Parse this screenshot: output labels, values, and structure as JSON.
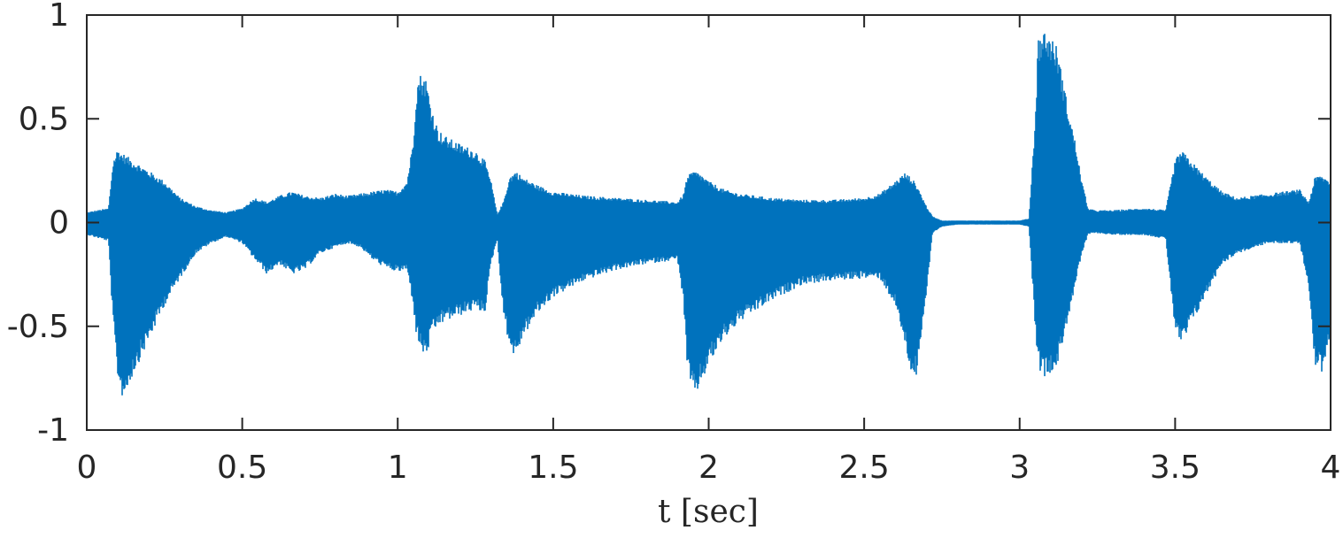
{
  "chart_data": {
    "type": "line",
    "title": "",
    "xlabel": "t [sec]",
    "ylabel": "",
    "xlim": [
      0,
      4
    ],
    "ylim": [
      -1,
      1
    ],
    "x_ticks": [
      "0",
      "0.5",
      "1",
      "1.5",
      "2",
      "2.5",
      "3",
      "3.5",
      "4"
    ],
    "y_ticks": [
      "1",
      "0.5",
      "0",
      "-0.5",
      "-1"
    ],
    "grid": false,
    "legend": "none",
    "series": [
      {
        "color": "#0072bd",
        "render": "audio-waveform-envelope",
        "envelope_t": [
          0,
          0.07,
          0.085,
          0.1,
          0.11,
          0.12,
          0.15,
          0.2,
          0.25,
          0.3,
          0.35,
          0.4,
          0.45,
          0.5,
          0.54,
          0.58,
          0.62,
          0.66,
          0.7,
          0.75,
          0.8,
          0.84,
          0.88,
          0.92,
          0.96,
          1.0,
          1.03,
          1.05,
          1.06,
          1.07,
          1.09,
          1.11,
          1.13,
          1.15,
          1.2,
          1.25,
          1.28,
          1.3,
          1.32,
          1.34,
          1.36,
          1.38,
          1.4,
          1.45,
          1.5,
          1.6,
          1.7,
          1.8,
          1.9,
          1.92,
          1.93,
          1.95,
          1.97,
          2.0,
          2.05,
          2.1,
          2.2,
          2.3,
          2.4,
          2.5,
          2.55,
          2.6,
          2.63,
          2.65,
          2.67,
          2.7,
          2.72,
          2.75,
          2.8,
          2.9,
          3.0,
          3.03,
          3.05,
          3.06,
          3.08,
          3.1,
          3.12,
          3.15,
          3.18,
          3.2,
          3.22,
          3.24,
          3.3,
          3.4,
          3.47,
          3.5,
          3.52,
          3.55,
          3.6,
          3.65,
          3.7,
          3.8,
          3.9,
          3.93,
          3.95,
          3.97,
          4.0
        ],
        "envelope_upper": [
          0.05,
          0.07,
          0.3,
          0.36,
          0.34,
          0.33,
          0.3,
          0.25,
          0.2,
          0.12,
          0.08,
          0.06,
          0.05,
          0.07,
          0.12,
          0.1,
          0.13,
          0.15,
          0.13,
          0.12,
          0.14,
          0.13,
          0.14,
          0.15,
          0.16,
          0.15,
          0.2,
          0.4,
          0.65,
          0.72,
          0.7,
          0.55,
          0.45,
          0.42,
          0.38,
          0.35,
          0.3,
          0.2,
          0.04,
          0.1,
          0.22,
          0.25,
          0.22,
          0.18,
          0.15,
          0.13,
          0.12,
          0.11,
          0.1,
          0.14,
          0.22,
          0.25,
          0.24,
          0.2,
          0.16,
          0.14,
          0.12,
          0.11,
          0.11,
          0.12,
          0.14,
          0.2,
          0.24,
          0.22,
          0.18,
          0.08,
          0.03,
          0.01,
          0.01,
          0.01,
          0.01,
          0.02,
          0.5,
          0.9,
          0.93,
          0.9,
          0.85,
          0.6,
          0.38,
          0.2,
          0.07,
          0.06,
          0.06,
          0.07,
          0.06,
          0.3,
          0.35,
          0.3,
          0.22,
          0.15,
          0.12,
          0.14,
          0.16,
          0.1,
          0.22,
          0.23,
          0.2
        ],
        "envelope_lower": [
          -0.06,
          -0.09,
          -0.5,
          -0.75,
          -0.83,
          -0.85,
          -0.73,
          -0.57,
          -0.4,
          -0.27,
          -0.15,
          -0.1,
          -0.07,
          -0.1,
          -0.18,
          -0.25,
          -0.2,
          -0.25,
          -0.23,
          -0.15,
          -0.12,
          -0.1,
          -0.12,
          -0.18,
          -0.22,
          -0.24,
          -0.23,
          -0.4,
          -0.55,
          -0.6,
          -0.66,
          -0.55,
          -0.5,
          -0.48,
          -0.45,
          -0.42,
          -0.44,
          -0.2,
          -0.08,
          -0.45,
          -0.6,
          -0.66,
          -0.56,
          -0.44,
          -0.36,
          -0.28,
          -0.23,
          -0.2,
          -0.18,
          -0.4,
          -0.7,
          -0.85,
          -0.8,
          -0.69,
          -0.56,
          -0.48,
          -0.38,
          -0.3,
          -0.28,
          -0.27,
          -0.27,
          -0.4,
          -0.58,
          -0.72,
          -0.75,
          -0.35,
          -0.05,
          -0.02,
          -0.01,
          -0.01,
          -0.01,
          -0.02,
          -0.5,
          -0.7,
          -0.75,
          -0.72,
          -0.7,
          -0.5,
          -0.3,
          -0.15,
          -0.06,
          -0.05,
          -0.06,
          -0.06,
          -0.08,
          -0.52,
          -0.6,
          -0.5,
          -0.35,
          -0.2,
          -0.15,
          -0.1,
          -0.1,
          -0.3,
          -0.7,
          -0.73,
          -0.55
        ]
      }
    ]
  }
}
